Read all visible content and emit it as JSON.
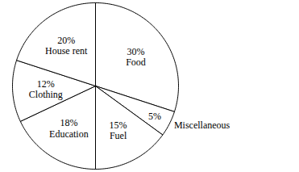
{
  "chart_data": {
    "type": "pie",
    "categories": [
      "Food",
      "Miscellaneous",
      "Fuel",
      "Education",
      "Clothing",
      "House rent"
    ],
    "values": [
      30,
      5,
      15,
      18,
      12,
      20
    ],
    "value_labels": [
      "30%",
      "5%",
      "15%",
      "18%",
      "12%",
      "20%"
    ],
    "data_labels": true,
    "color": "#ffffff"
  }
}
